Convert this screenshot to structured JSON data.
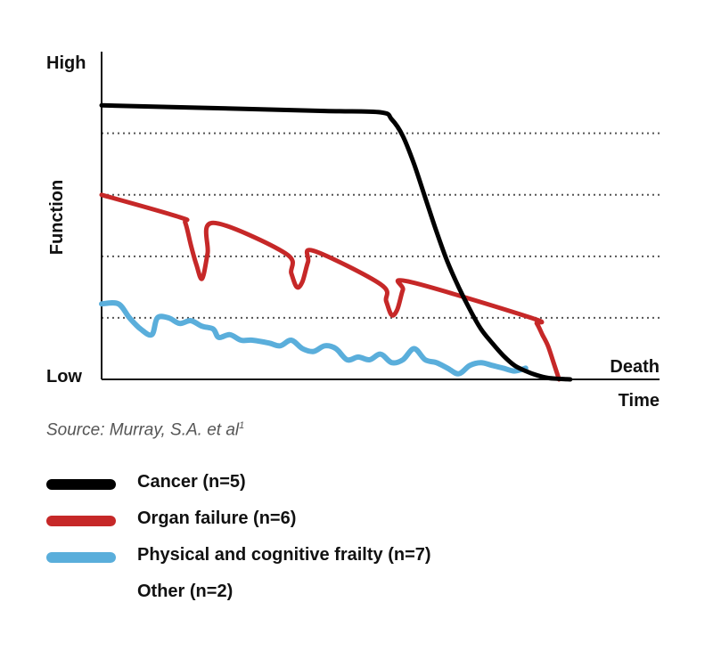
{
  "colors": {
    "cancer": "#000000",
    "organ_failure": "#c62828",
    "frailty": "#5aaedb",
    "grid": "#555555",
    "axis": "#111111"
  },
  "chart_data": {
    "type": "line",
    "title": "",
    "ylabel": "Function",
    "xlabel": "Time",
    "y_tick_labels": {
      "high": "High",
      "low": "Low"
    },
    "end_label": "Death",
    "xlim": [
      0,
      100
    ],
    "ylim": [
      0,
      100
    ],
    "gridlines_y": [
      22,
      44,
      66,
      88
    ],
    "grid": "dotted horizontal",
    "series": [
      {
        "key": "cancer",
        "name": "Cancer (n=5)",
        "x": [
          0,
          20,
          40,
          50,
          52,
          54,
          56,
          58,
          60,
          62,
          64,
          66,
          68,
          70,
          72,
          74,
          76,
          78,
          80,
          82,
          84
        ],
        "y": [
          98,
          97,
          96,
          95.5,
          93,
          87,
          77,
          65,
          53,
          42,
          33,
          25,
          18,
          13,
          8.5,
          5,
          3,
          1.5,
          0.5,
          0.2,
          0
        ]
      },
      {
        "key": "organ_failure",
        "name": "Organ failure (n=6)",
        "x": [
          0,
          14,
          15,
          16,
          17,
          18,
          19,
          20,
          33,
          34,
          35,
          36,
          37,
          38,
          50,
          51,
          52,
          53,
          54,
          55,
          77,
          78,
          79,
          80,
          81,
          82
        ],
        "y": [
          66,
          58,
          56,
          48,
          41,
          36,
          45,
          56,
          45,
          38,
          33,
          35,
          42,
          46,
          34,
          28,
          23,
          25,
          32,
          35,
          22,
          20,
          16,
          12,
          6,
          0
        ]
      },
      {
        "key": "frailty",
        "name": "Physical and cognitive frailty (n=7)",
        "x": [
          0,
          3,
          5,
          7,
          9,
          10,
          12,
          14,
          16,
          18,
          20,
          21,
          23,
          25,
          27,
          30,
          32,
          34,
          36,
          38,
          40,
          42,
          44,
          46,
          48,
          50,
          52,
          54,
          56,
          58,
          60,
          62,
          64,
          66,
          68,
          70,
          72,
          74,
          76
        ],
        "y": [
          27,
          27,
          22,
          18,
          16,
          22,
          22,
          20,
          21,
          19,
          18,
          15,
          16,
          14,
          14,
          13,
          12,
          14,
          11,
          10,
          12,
          11,
          7,
          8,
          7,
          9,
          6,
          7,
          11,
          7,
          6,
          4,
          2,
          5,
          6,
          5,
          4,
          3,
          4
        ]
      },
      {
        "key": "other",
        "name": "Other (n=2)",
        "x": [],
        "y": []
      }
    ],
    "legend": "below",
    "source": "Source: Murray, S.A. et al",
    "source_ref": "1"
  }
}
